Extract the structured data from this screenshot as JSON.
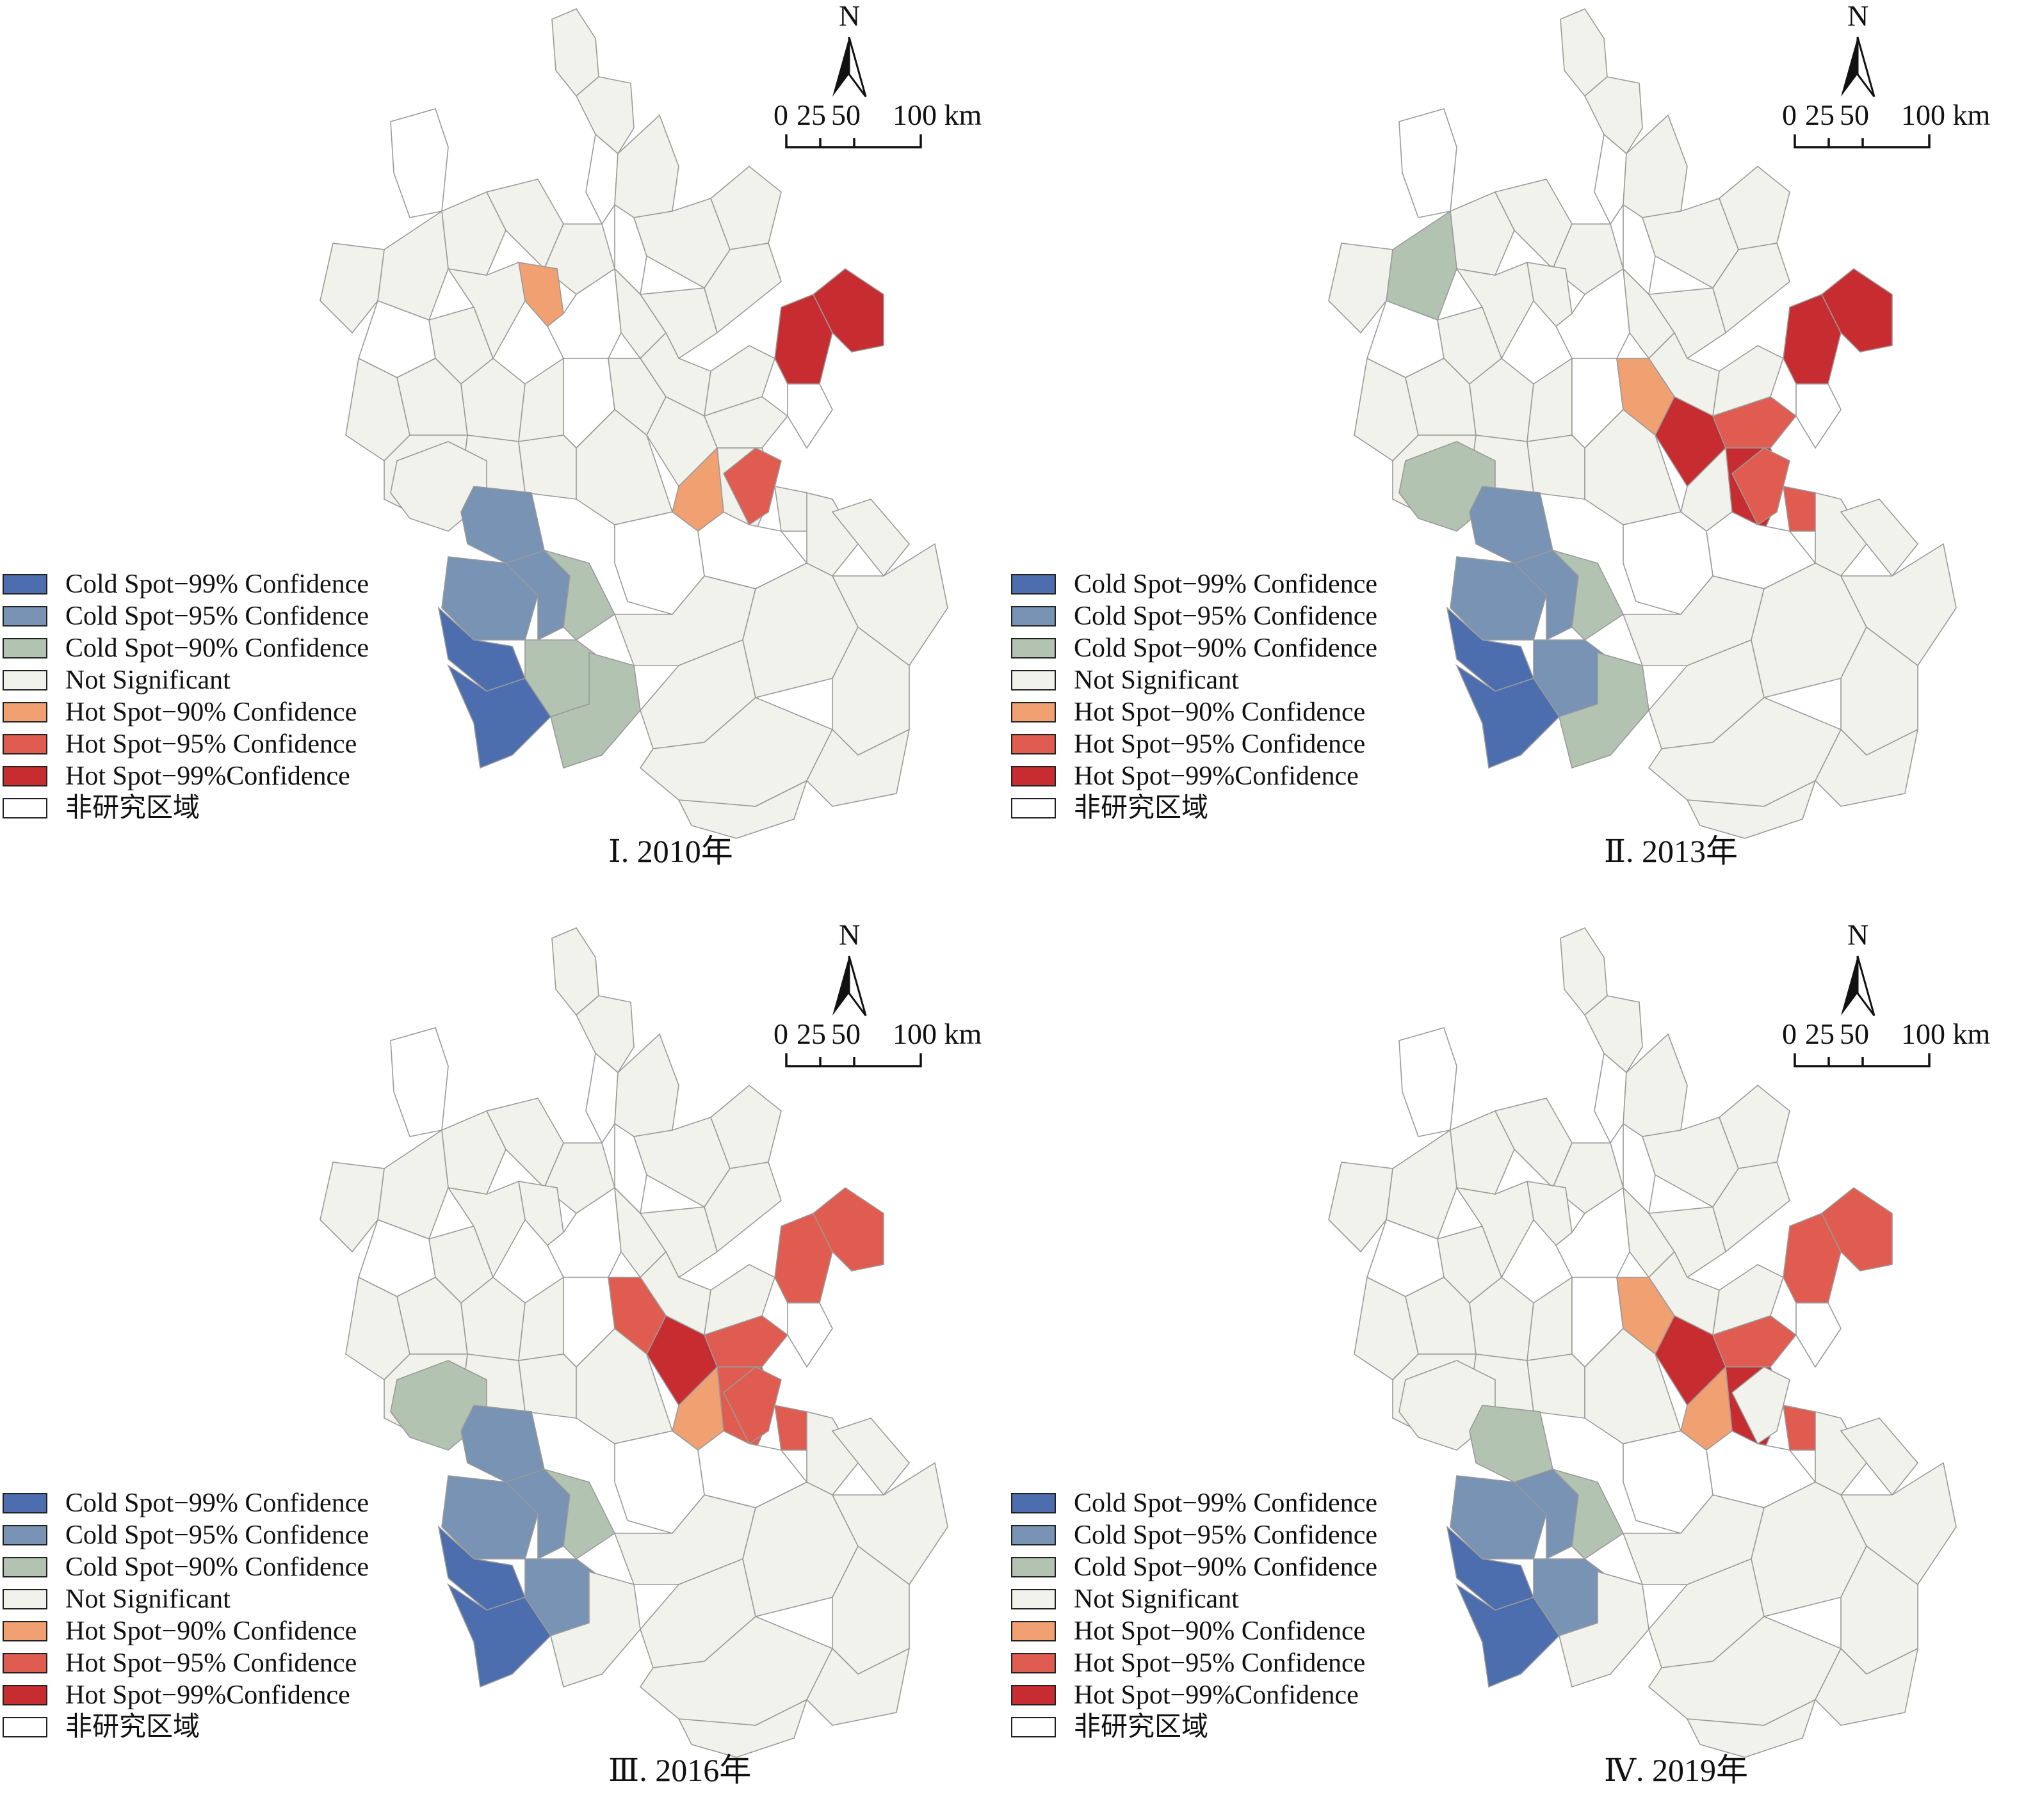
{
  "figure": {
    "legend_items": [
      {
        "key": "cold99",
        "label": "Cold Spot−99% Confidence",
        "color": "#4c6eae"
      },
      {
        "key": "cold95",
        "label": "Cold Spot−95% Confidence",
        "color": "#7893b3"
      },
      {
        "key": "cold90",
        "label": "Cold Spot−90% Confidence",
        "color": "#b2c3b2"
      },
      {
        "key": "ns",
        "label": "Not Significant",
        "color": "#f2f2ec"
      },
      {
        "key": "hot90",
        "label": "Hot Spot−90% Confidence",
        "color": "#f1a072"
      },
      {
        "key": "hot95",
        "label": "Hot Spot−95% Confidence",
        "color": "#e05c50"
      },
      {
        "key": "hot99",
        "label": "Hot Spot−99%Confidence",
        "color": "#c72c30"
      },
      {
        "key": "none",
        "label": "非研究区域",
        "color": "#ffffff"
      }
    ],
    "north_label": "N",
    "scale": {
      "ticks": [
        "0",
        "25",
        "50",
        "100 km"
      ]
    },
    "panels": [
      {
        "caption": "Ⅰ. 2010年",
        "year": 2010
      },
      {
        "caption": "Ⅱ. 2013年",
        "year": 2013
      },
      {
        "caption": "Ⅲ. 2016年",
        "year": 2016
      },
      {
        "caption": "Ⅳ. 2019年",
        "year": 2019
      }
    ]
  },
  "map_data": {
    "type": "choropleth",
    "classes_by_year": {
      "2010": {
        "c12": "hot90",
        "c30": "hot99",
        "c31": "hot99",
        "c28": "hot90",
        "c29": "hot95",
        "c40": "cold95",
        "c41": "cold95",
        "c42": "cold95",
        "c43": "cold99",
        "c44": "cold99",
        "c45": "cold90",
        "c46": "cold90",
        "c47": "cold90"
      },
      "2013": {
        "c5": "cold90",
        "c24": "hot90",
        "c25": "hot99",
        "c26": "hot95",
        "c27": "hot99",
        "c29": "hot95",
        "c30": "hot99",
        "c31": "hot99",
        "c32": "hot95",
        "c39": "cold90",
        "c40": "cold95",
        "c41": "cold95",
        "c42": "cold95",
        "c43": "cold99",
        "c44": "cold99",
        "c45": "cold90",
        "c46": "cold95",
        "c47": "cold90"
      },
      "2016": {
        "c24": "hot95",
        "c25": "hot99",
        "c26": "hot95",
        "c27": "hot95",
        "c28": "hot90",
        "c29": "hot95",
        "c30": "hot95",
        "c31": "hot95",
        "c32": "hot95",
        "c39": "cold90",
        "c40": "cold95",
        "c41": "cold95",
        "c42": "cold95",
        "c43": "cold99",
        "c44": "cold99",
        "c45": "cold90",
        "c46": "cold95"
      },
      "2019": {
        "c24": "hot90",
        "c25": "hot99",
        "c26": "hot95",
        "c27": "hot99",
        "c28": "hot90",
        "c30": "hot95",
        "c31": "hot95",
        "c32": "hot95",
        "c40": "cold90",
        "c41": "cold95",
        "c42": "cold95",
        "c43": "cold99",
        "c44": "cold99",
        "c45": "cold90",
        "c46": "cold95"
      }
    },
    "default_class": "ns",
    "excluded_units": [
      "w1",
      "w2",
      "w3",
      "w4",
      "w5",
      "w6",
      "w7",
      "w8",
      "w9"
    ]
  }
}
